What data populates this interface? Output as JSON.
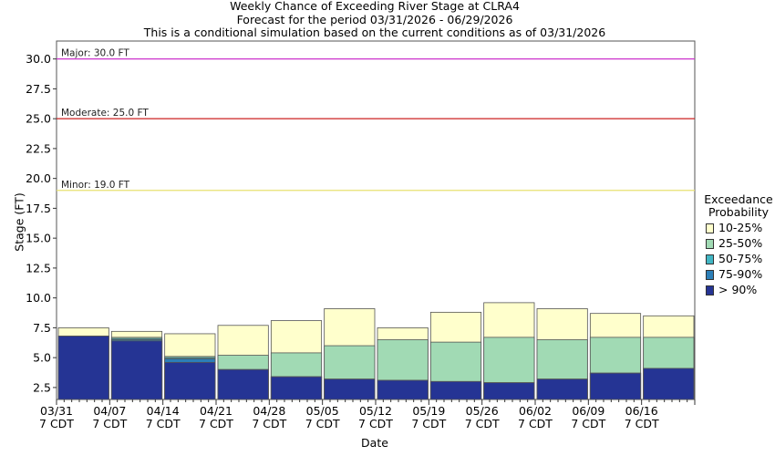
{
  "chart_data": {
    "type": "bar",
    "title": "Weekly Chance of Exceeding River Stage at CLRA4",
    "subtitle1": "Forecast for the period 03/31/2026 - 06/29/2026",
    "subtitle2": "This is a conditional simulation based on the current conditions as of 03/31/2026",
    "xlabel": "Date",
    "ylabel": "Stage (FT)",
    "ylim": [
      1.5,
      31.5
    ],
    "yticks": [
      "2.5",
      "5.0",
      "7.5",
      "10.0",
      "12.5",
      "15.0",
      "17.5",
      "20.0",
      "22.5",
      "25.0",
      "27.5",
      "30.0"
    ],
    "ytick_values": [
      2.5,
      5.0,
      7.5,
      10.0,
      12.5,
      15.0,
      17.5,
      20.0,
      22.5,
      25.0,
      27.5,
      30.0
    ],
    "xticks": [
      {
        "date": "03/31",
        "tz": "7 CDT"
      },
      {
        "date": "04/07",
        "tz": "7 CDT"
      },
      {
        "date": "04/14",
        "tz": "7 CDT"
      },
      {
        "date": "04/21",
        "tz": "7 CDT"
      },
      {
        "date": "04/28",
        "tz": "7 CDT"
      },
      {
        "date": "05/05",
        "tz": "7 CDT"
      },
      {
        "date": "05/12",
        "tz": "7 CDT"
      },
      {
        "date": "05/19",
        "tz": "7 CDT"
      },
      {
        "date": "05/26",
        "tz": "7 CDT"
      },
      {
        "date": "06/02",
        "tz": "7 CDT"
      },
      {
        "date": "06/09",
        "tz": "7 CDT"
      },
      {
        "date": "06/16",
        "tz": "7 CDT"
      }
    ],
    "thresholds": [
      {
        "label": "Major: 30.0 FT",
        "value": 30.0,
        "color": "#cc33cc"
      },
      {
        "label": "Moderate: 25.0 FT",
        "value": 25.0,
        "color": "#cc2222"
      },
      {
        "label": "Minor: 19.0 FT",
        "value": 19.0,
        "color": "#e8e070"
      }
    ],
    "legend_title_line1": "Exceedance",
    "legend_title_line2": "Probability",
    "series": [
      {
        "name": "10-25%",
        "color": "#ffffcc",
        "values": [
          7.5,
          7.2,
          7.0,
          7.7,
          8.1,
          9.1,
          7.5,
          8.8,
          9.6,
          9.1,
          8.7,
          8.5
        ]
      },
      {
        "name": "25-50%",
        "color": "#a1dab4",
        "values": [
          6.8,
          6.7,
          5.1,
          5.2,
          5.4,
          6.0,
          6.5,
          6.3,
          6.7,
          6.5,
          6.7,
          6.7
        ]
      },
      {
        "name": "50-75%",
        "color": "#41b6c4",
        "values": [
          6.8,
          6.6,
          5.0,
          4.0,
          3.4,
          3.2,
          3.1,
          3.0,
          2.9,
          3.2,
          3.7,
          4.1
        ]
      },
      {
        "name": "75-90%",
        "color": "#2c7fb8",
        "values": [
          6.8,
          6.5,
          4.9,
          4.0,
          3.4,
          3.2,
          3.1,
          3.0,
          2.9,
          3.2,
          3.7,
          4.1
        ]
      },
      {
        "name": "> 90%",
        "color": "#253494",
        "values": [
          6.8,
          6.4,
          4.6,
          4.0,
          3.4,
          3.2,
          3.1,
          3.0,
          2.9,
          3.2,
          3.7,
          4.1
        ]
      }
    ],
    "grid": false,
    "legend_position": "right"
  }
}
